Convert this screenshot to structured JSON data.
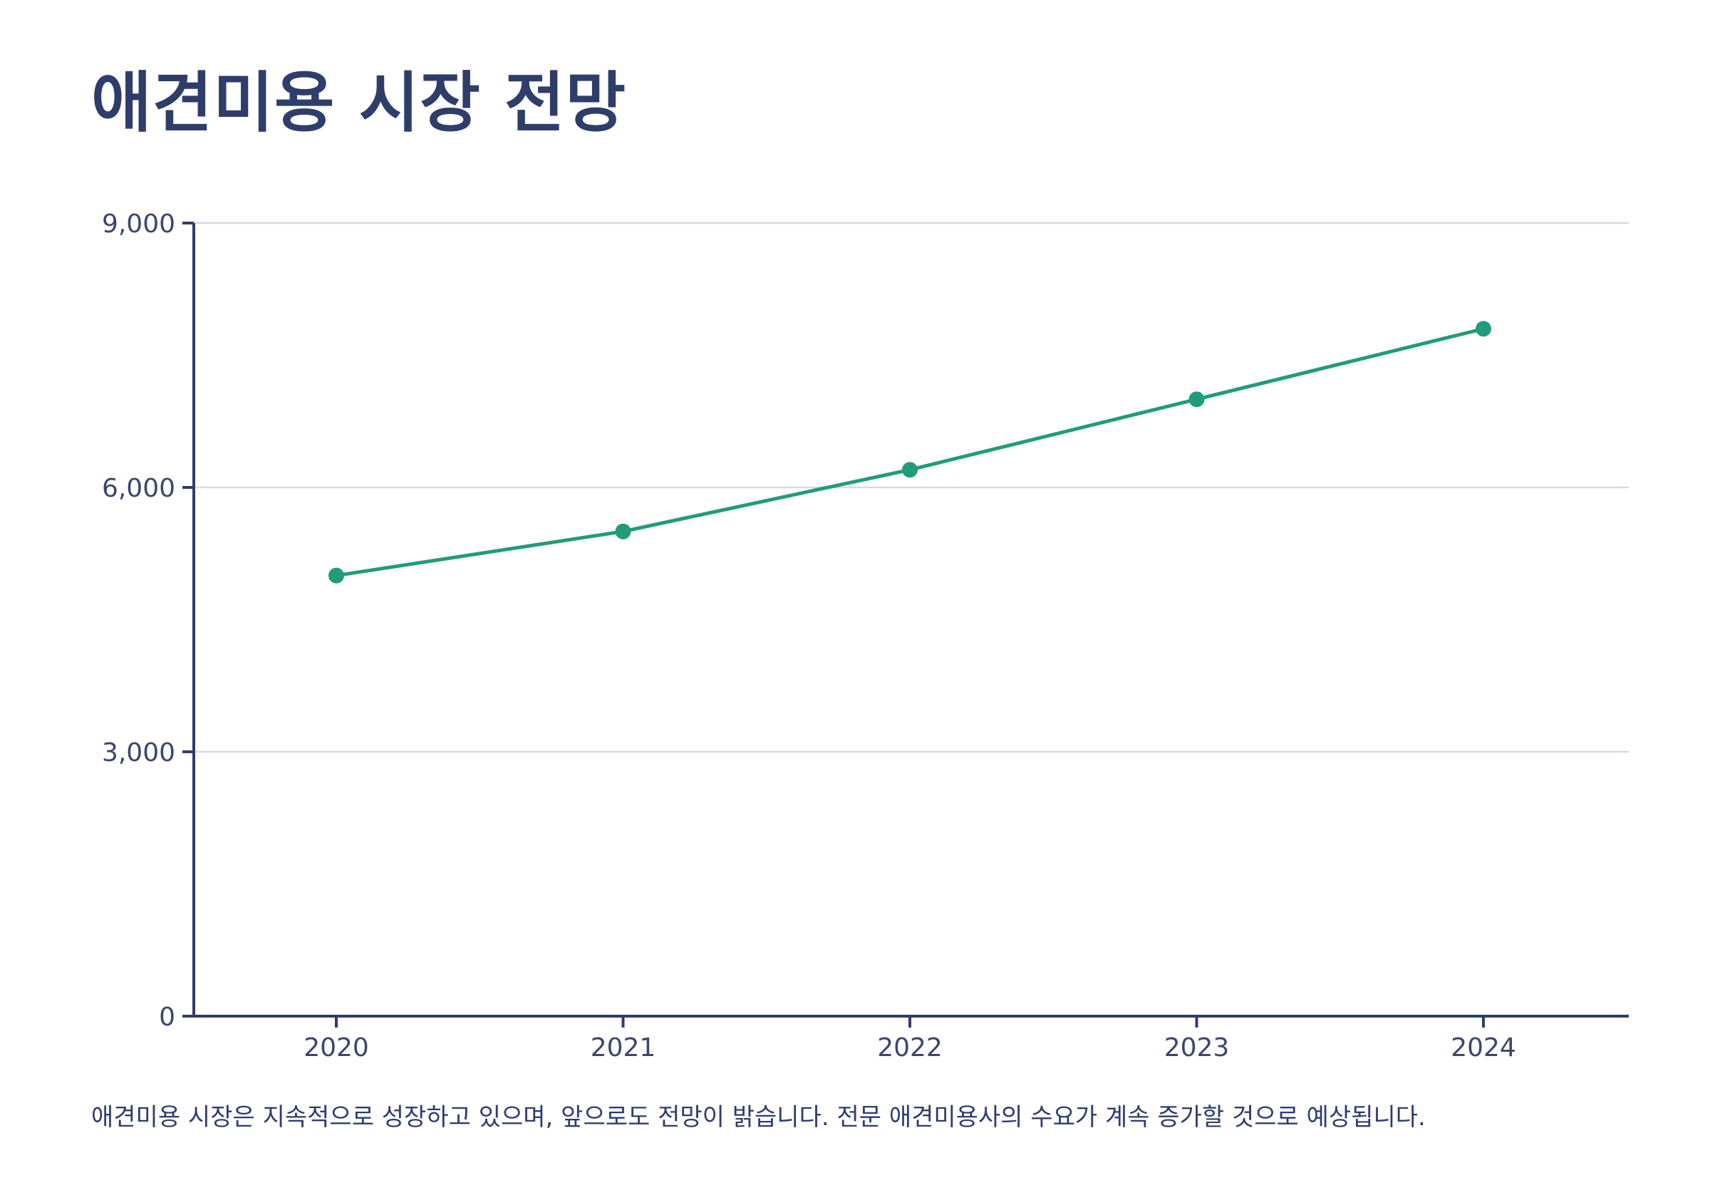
{
  "title": "애견미용 시장 전망",
  "caption": "애견미용 시장은 지속적으로 성장하고 있으며, 앞으로도 전망이 밝습니다. 전문 애견미용사의 수요가 계속 증가할 것으로 예상됩니다.",
  "colors": {
    "line": "#229b7b",
    "axis": "#2f3d6b",
    "grid": "#d6d9e6",
    "text": "#3a4670"
  },
  "chart_data": {
    "type": "line",
    "title": "애견미용 시장 전망",
    "xlabel": "",
    "ylabel": "",
    "categories": [
      "2020",
      "2021",
      "2022",
      "2023",
      "2024"
    ],
    "series": [
      {
        "name": "",
        "values": [
          5000,
          5500,
          6200,
          7000,
          7800
        ]
      }
    ],
    "ylim": [
      0,
      9000
    ],
    "yticks": [
      0,
      3000,
      6000,
      9000
    ],
    "ytick_labels": [
      "0",
      "3,000",
      "6,000",
      "9,000"
    ],
    "grid": true,
    "legend": "none"
  }
}
